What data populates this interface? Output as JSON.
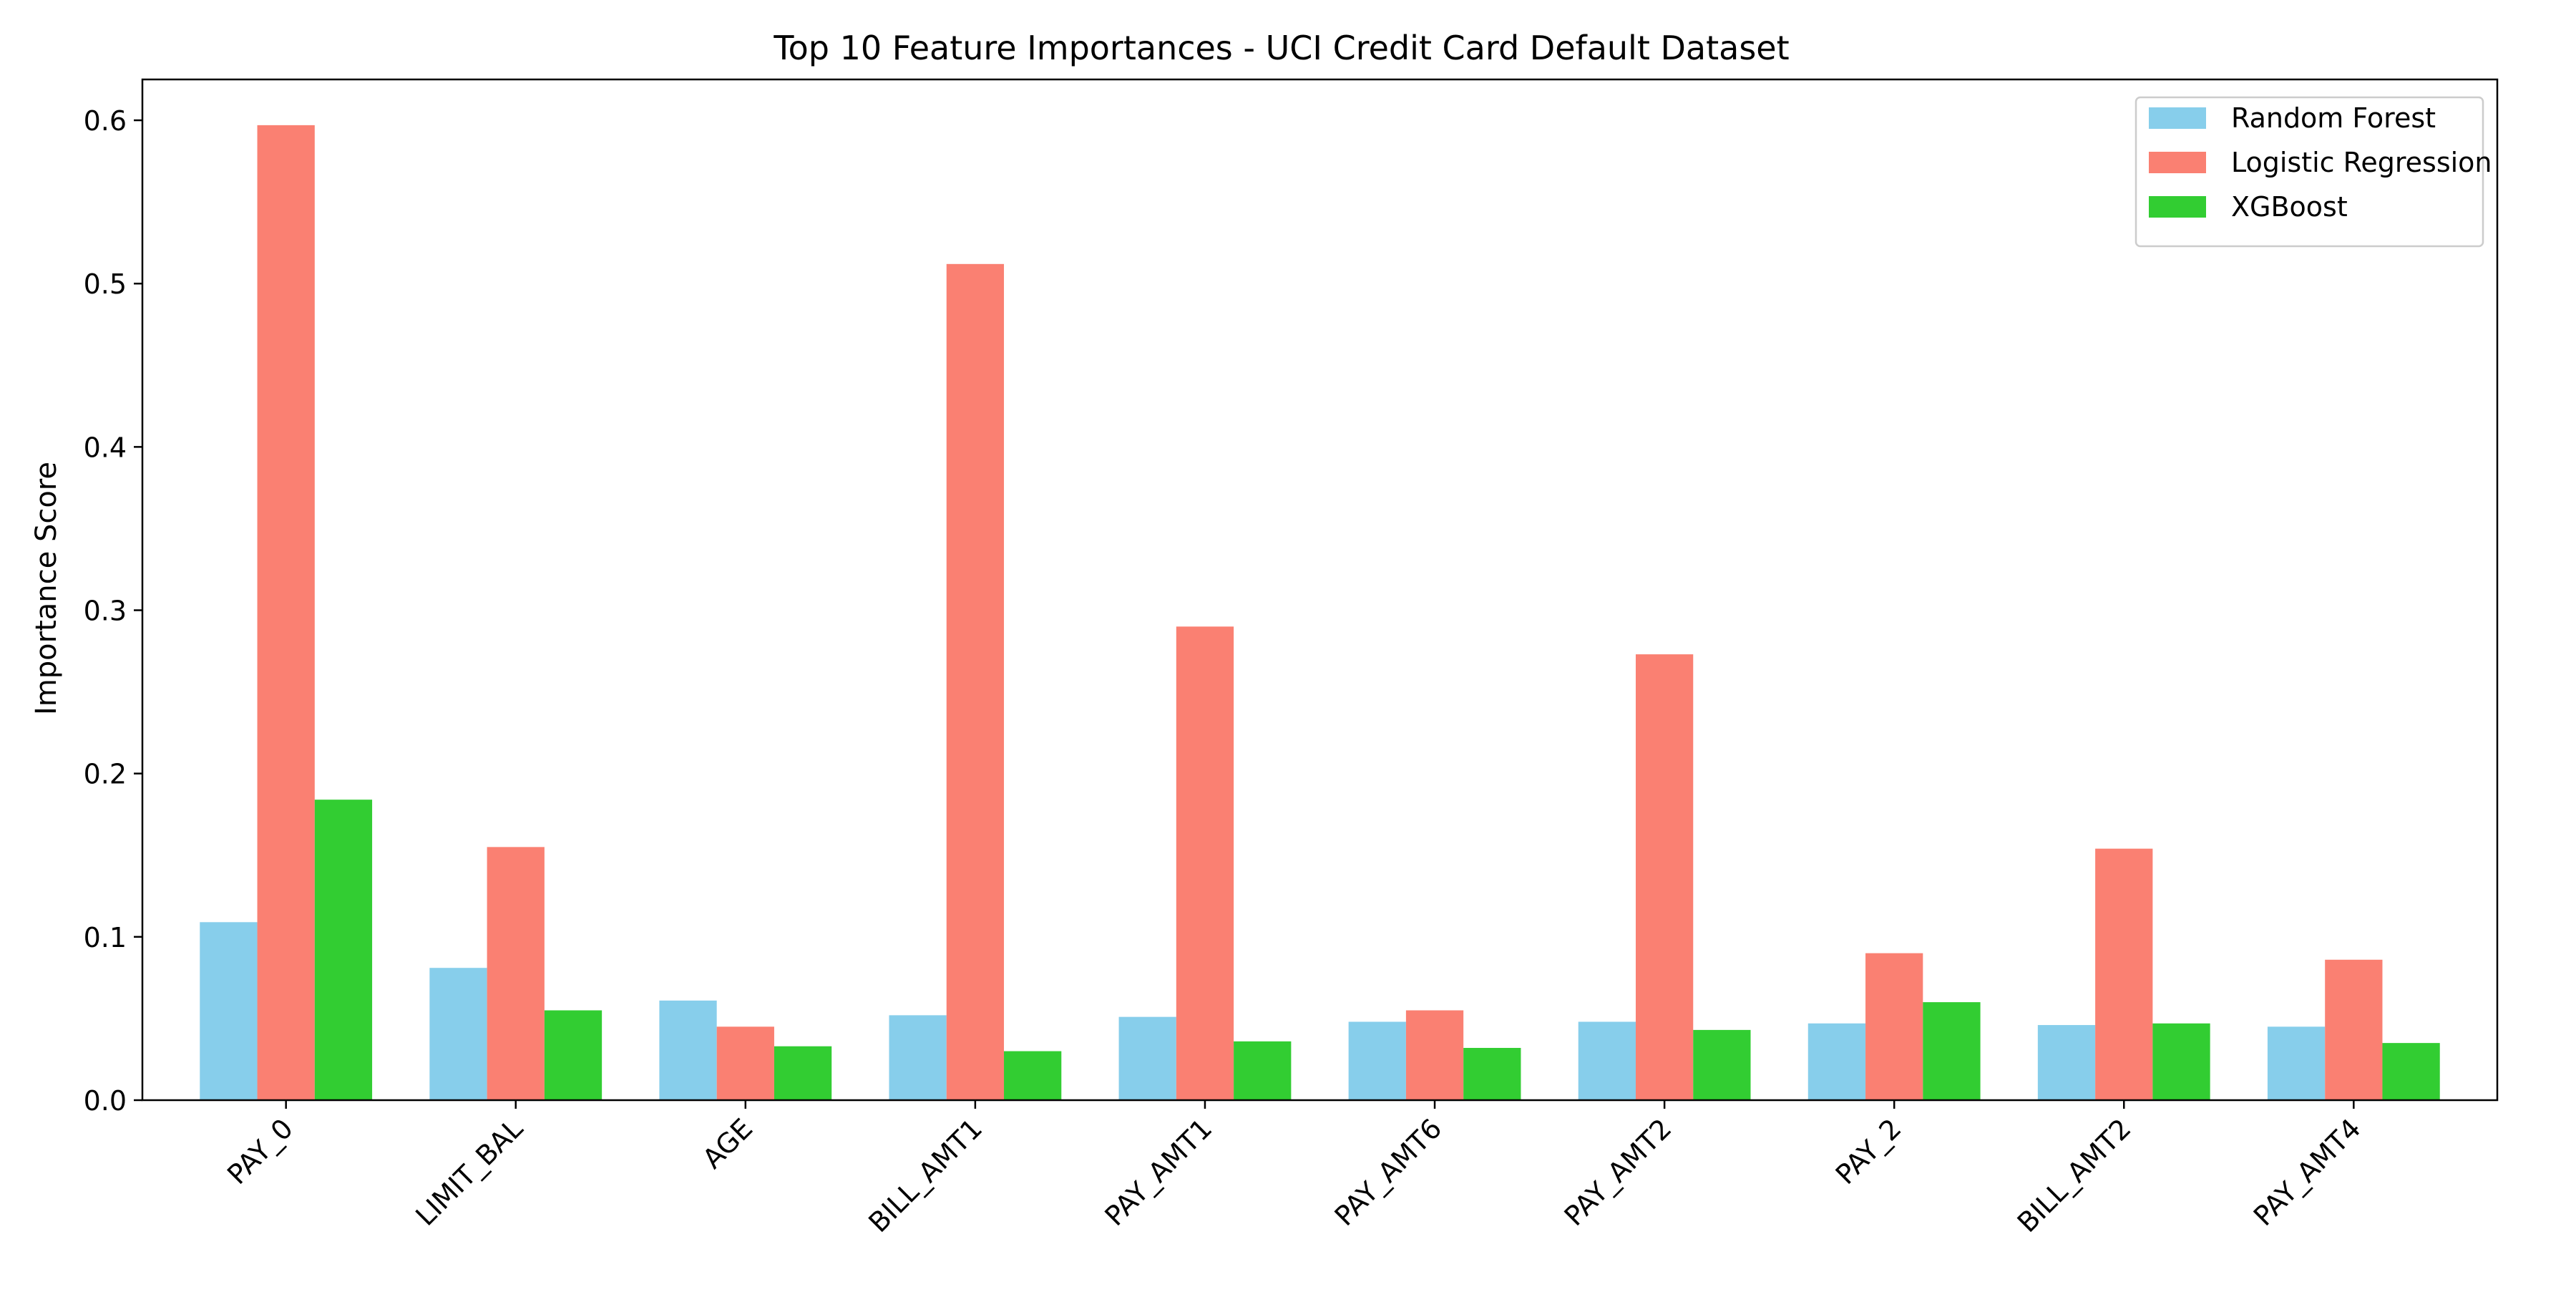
{
  "chart_data": {
    "type": "bar",
    "title": "Top 10 Feature Importances - UCI Credit Card Default Dataset",
    "xlabel": "",
    "ylabel": "Importance Score",
    "ylim": [
      0,
      0.625
    ],
    "yticks": [
      0.0,
      0.1,
      0.2,
      0.3,
      0.4,
      0.5,
      0.6
    ],
    "ytick_labels": [
      "0.0",
      "0.1",
      "0.2",
      "0.3",
      "0.4",
      "0.5",
      "0.6"
    ],
    "grid": false,
    "legend_position": "top-right",
    "categories": [
      "PAY_0",
      "LIMIT_BAL",
      "AGE",
      "BILL_AMT1",
      "PAY_AMT1",
      "PAY_AMT6",
      "PAY_AMT2",
      "PAY_2",
      "BILL_AMT2",
      "PAY_AMT4"
    ],
    "series": [
      {
        "name": "Random Forest",
        "color": "#87ceeb",
        "values": [
          0.109,
          0.081,
          0.061,
          0.052,
          0.051,
          0.048,
          0.048,
          0.047,
          0.046,
          0.045
        ]
      },
      {
        "name": "Logistic Regression",
        "color": "#fa8072",
        "values": [
          0.597,
          0.155,
          0.045,
          0.512,
          0.29,
          0.055,
          0.273,
          0.09,
          0.154,
          0.086
        ]
      },
      {
        "name": "XGBoost",
        "color": "#32cd32",
        "values": [
          0.184,
          0.055,
          0.033,
          0.03,
          0.036,
          0.032,
          0.043,
          0.06,
          0.047,
          0.035
        ]
      }
    ]
  }
}
